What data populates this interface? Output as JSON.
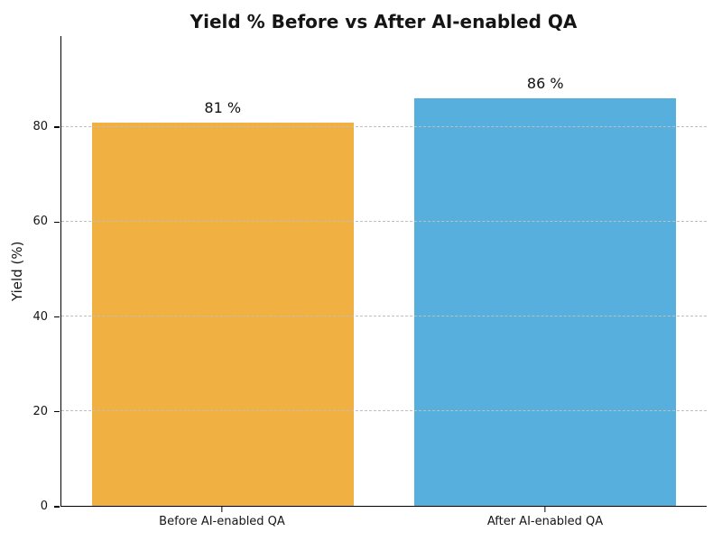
{
  "chart_data": {
    "type": "bar",
    "title": "Yield % Before vs After AI-enabled QA",
    "xlabel": "",
    "ylabel": "Yield (%)",
    "categories": [
      "Before AI-enabled QA",
      "After AI-enabled QA"
    ],
    "values": [
      81,
      86
    ],
    "bar_value_labels": [
      "81 %",
      "86 %"
    ],
    "bar_colors": [
      "#F1B042",
      "#57AFDE"
    ],
    "yticks": [
      0,
      20,
      40,
      60,
      80
    ],
    "ylim": [
      0,
      99.2
    ],
    "grid": "horizontal dashed, drawn above bars",
    "grid_color": "#bebebe",
    "legend": "none",
    "background_color": "#ffffff",
    "title_color": "#151515",
    "text_color": "#151515"
  }
}
